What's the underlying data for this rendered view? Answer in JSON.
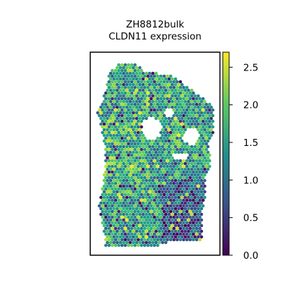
{
  "chart_data": {
    "type": "scatter",
    "title": [
      "ZH8812bulk",
      "CLDN11 expression"
    ],
    "xlabel": "",
    "ylabel": "",
    "axes_ticks": false,
    "colormap": "viridis",
    "colorbar": {
      "vmin": 0.0,
      "vmax": 2.7,
      "ticks": [
        0.0,
        0.5,
        1.0,
        1.5,
        2.0,
        2.5
      ],
      "tick_labels": [
        "0.0",
        "0.5",
        "1.0",
        "1.5",
        "2.0",
        "2.5"
      ],
      "placement": "right"
    },
    "spots": "hexagonal spatial grid of tissue spots colored by CLDN11 expression; two holes in upper right region; lower right region lower expression"
  }
}
